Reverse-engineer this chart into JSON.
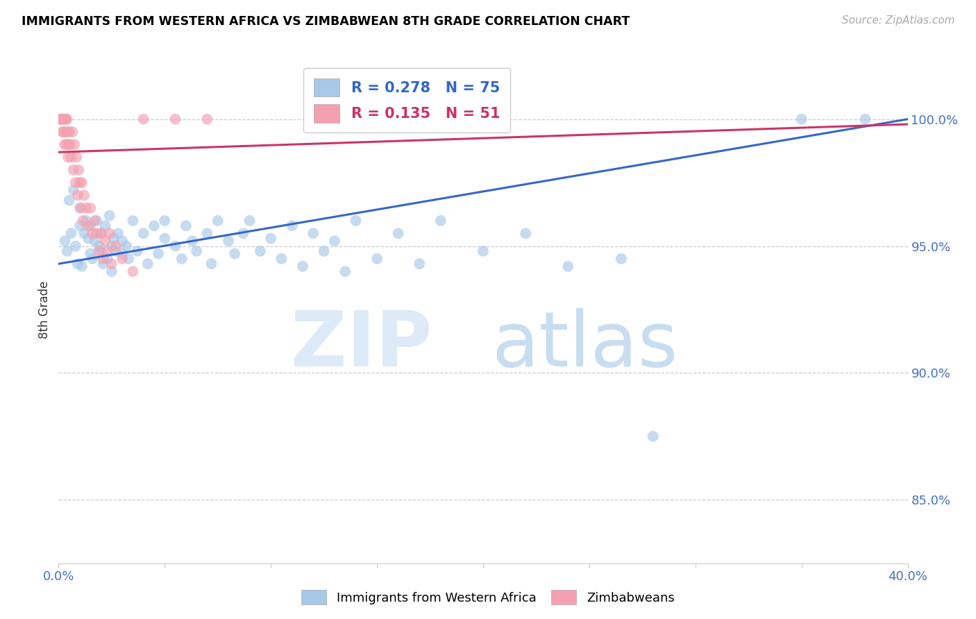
{
  "title": "IMMIGRANTS FROM WESTERN AFRICA VS ZIMBABWEAN 8TH GRADE CORRELATION CHART",
  "source": "Source: ZipAtlas.com",
  "ylabel": "8th Grade",
  "ylabel_right_ticks": [
    85.0,
    90.0,
    95.0,
    100.0
  ],
  "xlim": [
    0.0,
    40.0
  ],
  "ylim": [
    82.5,
    102.5
  ],
  "blue_R": 0.278,
  "blue_N": 75,
  "pink_R": 0.135,
  "pink_N": 51,
  "blue_color": "#a8c8e8",
  "pink_color": "#f4a0b0",
  "blue_line_color": "#3366cc",
  "pink_line_color": "#cc3366",
  "legend_label_blue": "Immigrants from Western Africa",
  "legend_label_pink": "Zimbabweans",
  "blue_line_x0": 0.0,
  "blue_line_y0": 94.3,
  "blue_line_x1": 40.0,
  "blue_line_y1": 100.0,
  "pink_line_x0": 0.0,
  "pink_line_y0": 98.7,
  "pink_line_x1": 40.0,
  "pink_line_y1": 99.8,
  "blue_points": [
    [
      0.3,
      95.2
    ],
    [
      0.4,
      94.8
    ],
    [
      0.5,
      96.8
    ],
    [
      0.6,
      95.5
    ],
    [
      0.7,
      97.2
    ],
    [
      0.8,
      95.0
    ],
    [
      0.9,
      94.3
    ],
    [
      1.0,
      96.5
    ],
    [
      1.0,
      95.8
    ],
    [
      1.1,
      94.2
    ],
    [
      1.2,
      95.5
    ],
    [
      1.3,
      96.0
    ],
    [
      1.4,
      95.3
    ],
    [
      1.5,
      94.7
    ],
    [
      1.5,
      95.8
    ],
    [
      1.6,
      94.5
    ],
    [
      1.7,
      95.2
    ],
    [
      1.8,
      96.0
    ],
    [
      1.9,
      95.0
    ],
    [
      2.0,
      94.8
    ],
    [
      2.0,
      95.5
    ],
    [
      2.1,
      94.3
    ],
    [
      2.2,
      95.8
    ],
    [
      2.3,
      94.5
    ],
    [
      2.4,
      96.2
    ],
    [
      2.5,
      95.0
    ],
    [
      2.5,
      94.0
    ],
    [
      2.6,
      95.3
    ],
    [
      2.7,
      94.8
    ],
    [
      2.8,
      95.5
    ],
    [
      3.0,
      95.2
    ],
    [
      3.0,
      94.7
    ],
    [
      3.2,
      95.0
    ],
    [
      3.3,
      94.5
    ],
    [
      3.5,
      96.0
    ],
    [
      3.7,
      94.8
    ],
    [
      4.0,
      95.5
    ],
    [
      4.2,
      94.3
    ],
    [
      4.5,
      95.8
    ],
    [
      4.7,
      94.7
    ],
    [
      5.0,
      95.3
    ],
    [
      5.0,
      96.0
    ],
    [
      5.5,
      95.0
    ],
    [
      5.8,
      94.5
    ],
    [
      6.0,
      95.8
    ],
    [
      6.3,
      95.2
    ],
    [
      6.5,
      94.8
    ],
    [
      7.0,
      95.5
    ],
    [
      7.2,
      94.3
    ],
    [
      7.5,
      96.0
    ],
    [
      8.0,
      95.2
    ],
    [
      8.3,
      94.7
    ],
    [
      8.7,
      95.5
    ],
    [
      9.0,
      96.0
    ],
    [
      9.5,
      94.8
    ],
    [
      10.0,
      95.3
    ],
    [
      10.5,
      94.5
    ],
    [
      11.0,
      95.8
    ],
    [
      11.5,
      94.2
    ],
    [
      12.0,
      95.5
    ],
    [
      12.5,
      94.8
    ],
    [
      13.0,
      95.2
    ],
    [
      13.5,
      94.0
    ],
    [
      14.0,
      96.0
    ],
    [
      15.0,
      94.5
    ],
    [
      16.0,
      95.5
    ],
    [
      17.0,
      94.3
    ],
    [
      18.0,
      96.0
    ],
    [
      20.0,
      94.8
    ],
    [
      22.0,
      95.5
    ],
    [
      24.0,
      94.2
    ],
    [
      26.5,
      94.5
    ],
    [
      28.0,
      87.5
    ],
    [
      35.0,
      100.0
    ],
    [
      38.0,
      100.0
    ]
  ],
  "pink_points": [
    [
      0.05,
      100.0
    ],
    [
      0.1,
      100.0
    ],
    [
      0.12,
      100.0
    ],
    [
      0.15,
      100.0
    ],
    [
      0.18,
      99.5
    ],
    [
      0.2,
      100.0
    ],
    [
      0.22,
      99.5
    ],
    [
      0.25,
      100.0
    ],
    [
      0.28,
      99.0
    ],
    [
      0.3,
      100.0
    ],
    [
      0.32,
      99.5
    ],
    [
      0.35,
      100.0
    ],
    [
      0.37,
      99.0
    ],
    [
      0.4,
      100.0
    ],
    [
      0.42,
      99.5
    ],
    [
      0.45,
      98.5
    ],
    [
      0.48,
      99.0
    ],
    [
      0.5,
      99.5
    ],
    [
      0.55,
      99.0
    ],
    [
      0.6,
      98.5
    ],
    [
      0.65,
      99.5
    ],
    [
      0.7,
      98.0
    ],
    [
      0.75,
      99.0
    ],
    [
      0.8,
      97.5
    ],
    [
      0.85,
      98.5
    ],
    [
      0.9,
      97.0
    ],
    [
      0.95,
      98.0
    ],
    [
      1.0,
      97.5
    ],
    [
      1.05,
      96.5
    ],
    [
      1.1,
      97.5
    ],
    [
      1.15,
      96.0
    ],
    [
      1.2,
      97.0
    ],
    [
      1.3,
      96.5
    ],
    [
      1.4,
      95.8
    ],
    [
      1.5,
      96.5
    ],
    [
      1.6,
      95.5
    ],
    [
      1.7,
      96.0
    ],
    [
      1.8,
      95.5
    ],
    [
      1.9,
      94.8
    ],
    [
      2.0,
      95.5
    ],
    [
      2.1,
      94.5
    ],
    [
      2.2,
      95.2
    ],
    [
      2.3,
      94.8
    ],
    [
      2.4,
      95.5
    ],
    [
      2.5,
      94.3
    ],
    [
      2.7,
      95.0
    ],
    [
      3.0,
      94.5
    ],
    [
      3.5,
      94.0
    ],
    [
      4.0,
      100.0
    ],
    [
      5.5,
      100.0
    ],
    [
      7.0,
      100.0
    ]
  ]
}
